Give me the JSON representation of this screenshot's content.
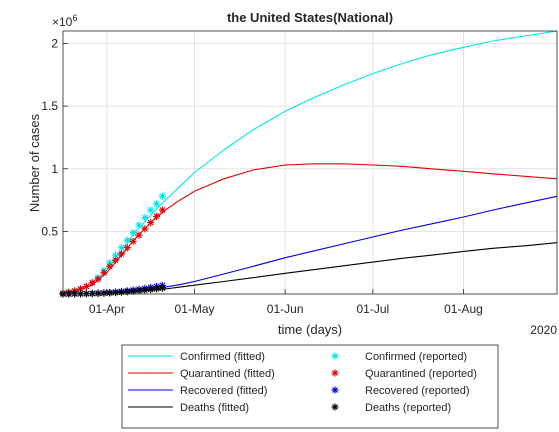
{
  "chart_data": {
    "type": "line",
    "title": "the United States(National)",
    "xlabel": "time (days)",
    "ylabel": "Number of cases",
    "y_exponent_label": "×10",
    "y_exponent_power": "6",
    "x_year_label": "2020",
    "x_unit": "day of year 2020",
    "xlim": [
      77,
      246
    ],
    "ylim": [
      0,
      2.1
    ],
    "y_scale": 1000000,
    "grid": true,
    "legend_location": "bottom, outside plot, 2 columns",
    "x_ticks": [
      {
        "value": 92,
        "label": "01-Apr"
      },
      {
        "value": 122,
        "label": "01-May"
      },
      {
        "value": 153,
        "label": "01-Jun"
      },
      {
        "value": 183,
        "label": "01-Jul"
      },
      {
        "value": 214,
        "label": "01-Aug"
      }
    ],
    "y_ticks": [
      {
        "value": 0.5,
        "label": "0.5"
      },
      {
        "value": 1,
        "label": "1"
      },
      {
        "value": 1.5,
        "label": "1.5"
      },
      {
        "value": 2,
        "label": "2"
      }
    ],
    "series": [
      {
        "name": "Confirmed (fitted)",
        "kind": "line",
        "color": "#00e5ee",
        "x": [
          77,
          82,
          87,
          92,
          97,
          102,
          107,
          112,
          117,
          122,
          132,
          142,
          153,
          163,
          173,
          183,
          193,
          203,
          214,
          224,
          235,
          246
        ],
        "y": [
          0.01,
          0.03,
          0.08,
          0.19,
          0.35,
          0.5,
          0.63,
          0.75,
          0.86,
          0.97,
          1.15,
          1.31,
          1.46,
          1.57,
          1.67,
          1.76,
          1.84,
          1.91,
          1.97,
          2.02,
          2.06,
          2.1
        ]
      },
      {
        "name": "Quarantined (fitted)",
        "kind": "line",
        "color": "#e00000",
        "x": [
          77,
          82,
          87,
          92,
          97,
          102,
          107,
          112,
          117,
          122,
          132,
          142,
          153,
          163,
          173,
          183,
          193,
          203,
          214,
          224,
          235,
          246
        ],
        "y": [
          0.01,
          0.03,
          0.07,
          0.17,
          0.31,
          0.45,
          0.57,
          0.67,
          0.75,
          0.82,
          0.92,
          0.99,
          1.03,
          1.04,
          1.04,
          1.03,
          1.02,
          1.0,
          0.98,
          0.96,
          0.94,
          0.92
        ]
      },
      {
        "name": "Recovered (fitted)",
        "kind": "line",
        "color": "#0000e0",
        "x": [
          77,
          87,
          97,
          107,
          112,
          117,
          122,
          132,
          142,
          153,
          163,
          173,
          183,
          193,
          203,
          214,
          224,
          235,
          246
        ],
        "y": [
          0.0,
          0.005,
          0.015,
          0.04,
          0.055,
          0.075,
          0.1,
          0.16,
          0.22,
          0.29,
          0.345,
          0.4,
          0.455,
          0.51,
          0.56,
          0.615,
          0.67,
          0.725,
          0.78
        ]
      },
      {
        "name": "Deaths (fitted)",
        "kind": "line",
        "color": "#000000",
        "x": [
          77,
          87,
          97,
          107,
          112,
          117,
          122,
          132,
          142,
          153,
          163,
          173,
          183,
          193,
          203,
          214,
          224,
          235,
          246
        ],
        "y": [
          0.0,
          0.004,
          0.012,
          0.03,
          0.04,
          0.055,
          0.07,
          0.1,
          0.13,
          0.165,
          0.195,
          0.225,
          0.255,
          0.285,
          0.31,
          0.34,
          0.365,
          0.385,
          0.41
        ]
      },
      {
        "name": "Confirmed (reported)",
        "kind": "marker",
        "color": "#00e5ee",
        "x": [
          77,
          79,
          81,
          83,
          85,
          87,
          89,
          91,
          93,
          95,
          97,
          99,
          101,
          103,
          105,
          107,
          109,
          111
        ],
        "y": [
          0.008,
          0.015,
          0.025,
          0.04,
          0.06,
          0.09,
          0.13,
          0.19,
          0.25,
          0.31,
          0.37,
          0.43,
          0.49,
          0.55,
          0.61,
          0.67,
          0.72,
          0.78
        ]
      },
      {
        "name": "Quarantined (reported)",
        "kind": "marker",
        "color": "#e00000",
        "x": [
          77,
          79,
          81,
          83,
          85,
          87,
          89,
          91,
          93,
          95,
          97,
          99,
          101,
          103,
          105,
          107,
          109,
          111
        ],
        "y": [
          0.007,
          0.014,
          0.024,
          0.04,
          0.06,
          0.09,
          0.12,
          0.17,
          0.22,
          0.27,
          0.32,
          0.37,
          0.42,
          0.47,
          0.52,
          0.57,
          0.62,
          0.67
        ]
      },
      {
        "name": "Recovered (reported)",
        "kind": "marker",
        "color": "#0000e0",
        "x": [
          77,
          79,
          81,
          83,
          85,
          87,
          89,
          91,
          93,
          95,
          97,
          99,
          101,
          103,
          105,
          107,
          109,
          111
        ],
        "y": [
          0.0,
          0.0,
          0.001,
          0.002,
          0.003,
          0.005,
          0.007,
          0.009,
          0.012,
          0.016,
          0.02,
          0.025,
          0.031,
          0.037,
          0.044,
          0.052,
          0.06,
          0.068
        ]
      },
      {
        "name": "Deaths (reported)",
        "kind": "marker",
        "color": "#000000",
        "x": [
          77,
          79,
          81,
          83,
          85,
          87,
          89,
          91,
          93,
          95,
          97,
          99,
          101,
          103,
          105,
          107,
          109,
          111
        ],
        "y": [
          0.0,
          0.0,
          0.001,
          0.001,
          0.002,
          0.003,
          0.004,
          0.006,
          0.008,
          0.011,
          0.014,
          0.018,
          0.022,
          0.026,
          0.031,
          0.036,
          0.041,
          0.046
        ]
      }
    ],
    "legend": [
      {
        "label": "Confirmed (fitted)",
        "kind": "line",
        "color": "#00e5ee"
      },
      {
        "label": "Confirmed (reported)",
        "kind": "marker",
        "color": "#00e5ee"
      },
      {
        "label": "Quarantined (fitted)",
        "kind": "line",
        "color": "#e00000"
      },
      {
        "label": "Quarantined (reported)",
        "kind": "marker",
        "color": "#e00000"
      },
      {
        "label": "Recovered (fitted)",
        "kind": "line",
        "color": "#0000e0"
      },
      {
        "label": "Recovered (reported)",
        "kind": "marker",
        "color": "#0000e0"
      },
      {
        "label": "Deaths (fitted)",
        "kind": "line",
        "color": "#000000"
      },
      {
        "label": "Deaths (reported)",
        "kind": "marker",
        "color": "#000000"
      }
    ]
  }
}
